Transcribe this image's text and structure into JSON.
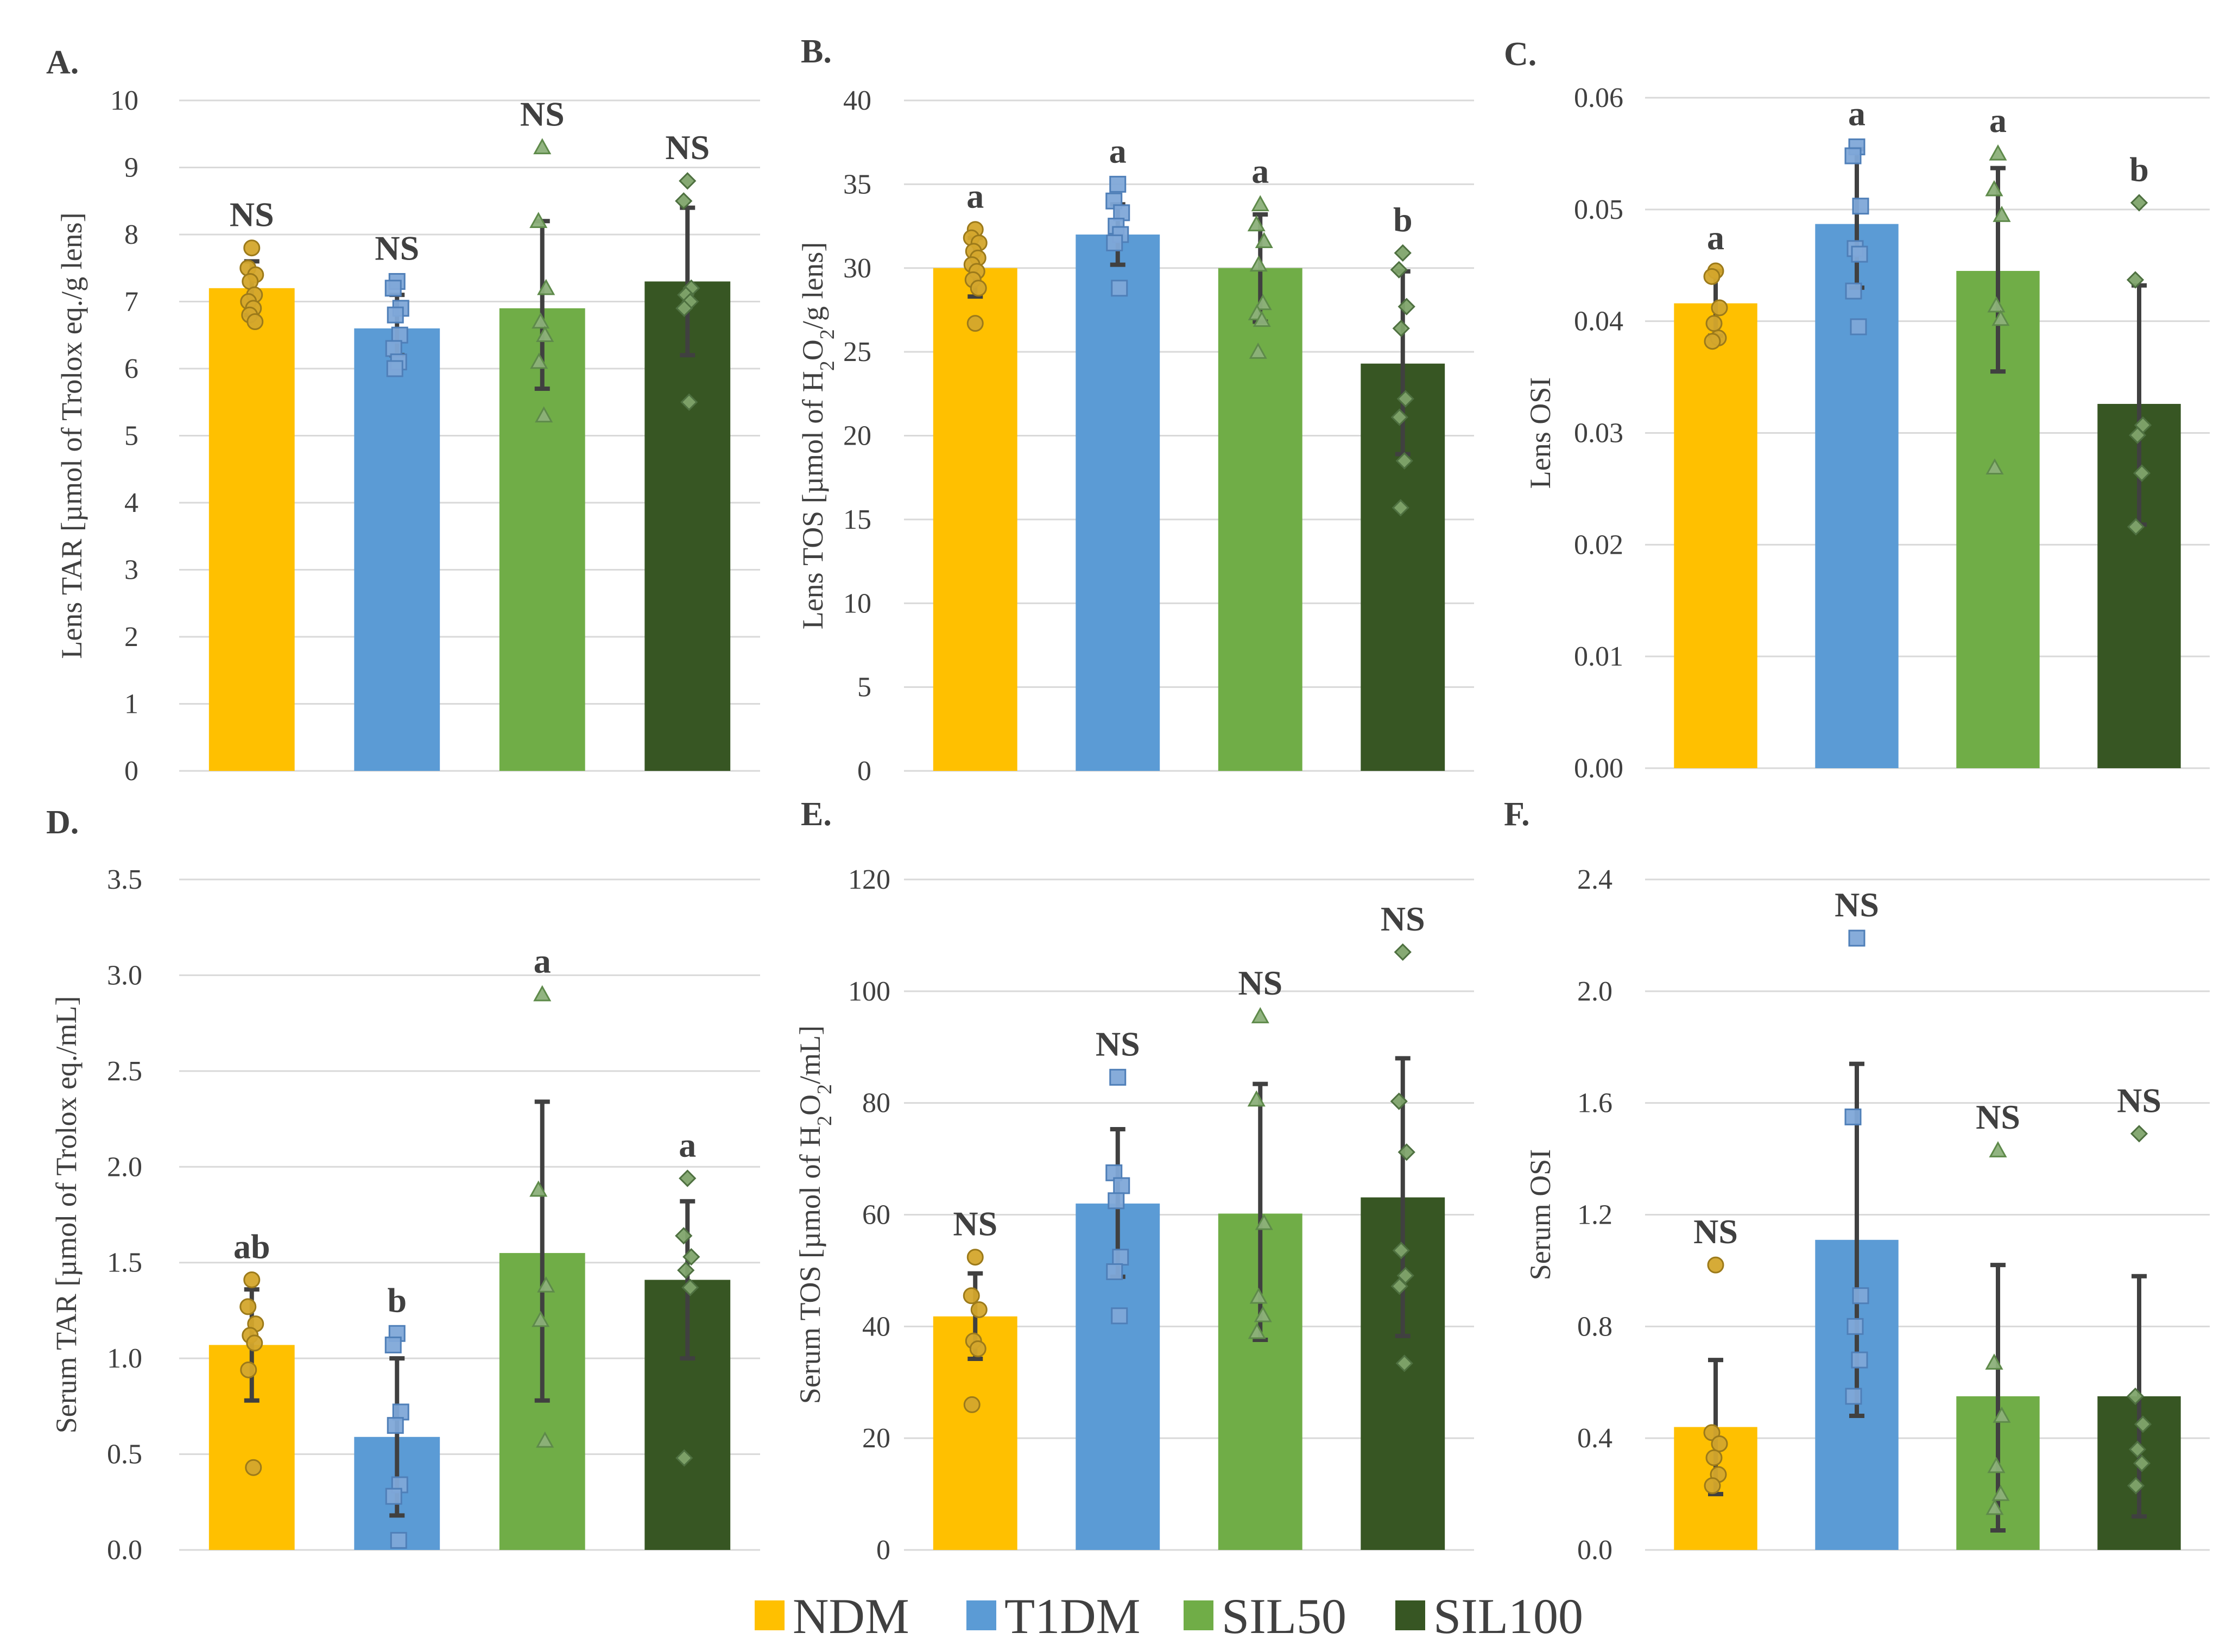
{
  "legend": {
    "items": [
      {
        "label": "NDM",
        "color": "#FFC000"
      },
      {
        "label": "T1DM",
        "color": "#5B9BD5"
      },
      {
        "label": "SIL50",
        "color": "#70AD47"
      },
      {
        "label": "SIL100",
        "color": "#375623"
      }
    ]
  },
  "chart_data": [
    {
      "id": "A",
      "title": "A.",
      "type": "bar",
      "ylabel": "Lens TAR [µmol of Trolox eq./g lens]",
      "ylim": [
        0,
        10
      ],
      "ticks": [
        "0",
        "1",
        "2",
        "3",
        "4",
        "5",
        "6",
        "7",
        "8",
        "9",
        "10"
      ],
      "categories": [
        "NDM",
        "T1DM",
        "SIL50",
        "SIL100"
      ],
      "values": [
        7.2,
        6.6,
        6.9,
        7.3
      ],
      "error": [
        [
          6.8,
          7.6
        ],
        [
          6.2,
          7.1
        ],
        [
          5.7,
          8.2
        ],
        [
          6.2,
          8.4
        ]
      ],
      "points": [
        [
          7.8,
          7.5,
          7.4,
          7.3,
          7.1,
          7.0,
          6.9,
          6.8,
          6.7
        ],
        [
          7.3,
          7.2,
          6.9,
          6.8,
          6.5,
          6.3,
          6.1,
          6.0
        ],
        [
          9.3,
          8.2,
          7.2,
          6.7,
          6.5,
          6.1,
          5.3
        ],
        [
          8.8,
          8.5,
          7.2,
          7.1,
          7.0,
          6.9,
          5.5
        ]
      ],
      "significance": [
        "NS",
        "NS",
        "NS",
        "NS"
      ]
    },
    {
      "id": "B",
      "title": "B.",
      "type": "bar",
      "ylabel_parts": [
        "Lens TOS [µmol of H",
        "2",
        "O",
        "2",
        "/g lens]"
      ],
      "ylim": [
        0,
        40
      ],
      "ticks": [
        "0",
        "5",
        "10",
        "15",
        "20",
        "25",
        "30",
        "35",
        "40"
      ],
      "categories": [
        "NDM",
        "T1DM",
        "SIL50",
        "SIL100"
      ],
      "values": [
        30,
        32,
        30,
        24.3
      ],
      "error": [
        [
          28.3,
          31.8
        ],
        [
          30.2,
          33.8
        ],
        [
          26.8,
          33.2
        ],
        [
          18.9,
          29.8
        ]
      ],
      "points": [
        [
          32.3,
          31.8,
          31.5,
          31.0,
          30.6,
          30.2,
          29.8,
          29.3,
          28.8,
          26.7
        ],
        [
          35.0,
          34.0,
          33.3,
          32.5,
          32.0,
          31.5,
          28.8
        ],
        [
          33.8,
          32.6,
          31.6,
          30.2,
          27.9,
          27.3,
          26.9,
          25.0
        ],
        [
          30.9,
          29.9,
          27.7,
          26.4,
          22.2,
          21.1,
          18.5,
          15.7
        ]
      ],
      "significance": [
        "a",
        "a",
        "a",
        "b"
      ]
    },
    {
      "id": "C",
      "title": "C.",
      "type": "bar",
      "ylabel": "Lens OSI",
      "ylim": [
        0,
        0.06
      ],
      "ticks": [
        "0.00",
        "0.01",
        "0.02",
        "0.03",
        "0.04",
        "0.05",
        "0.06"
      ],
      "categories": [
        "NDM",
        "T1DM",
        "SIL50",
        "SIL100"
      ],
      "values": [
        0.0416,
        0.0487,
        0.0445,
        0.0326
      ],
      "error": [
        [
          0.0387,
          0.0445
        ],
        [
          0.043,
          0.0554
        ],
        [
          0.0355,
          0.0537
        ],
        [
          0.0218,
          0.0432
        ]
      ],
      "points": [
        [
          0.0445,
          0.044,
          0.0412,
          0.0398,
          0.0385,
          0.0382
        ],
        [
          0.0556,
          0.0548,
          0.0503,
          0.0465,
          0.046,
          0.0427,
          0.0395
        ],
        [
          0.055,
          0.0518,
          0.0495,
          0.0414,
          0.0402,
          0.0269
        ],
        [
          0.0506,
          0.0437,
          0.0307,
          0.0298,
          0.0264,
          0.0216
        ]
      ],
      "significance": [
        "a",
        "a",
        "a",
        "b"
      ]
    },
    {
      "id": "D",
      "title": "D.",
      "type": "bar",
      "ylabel": "Serum TAR [µmol of Trolox eq./mL]",
      "ylim": [
        0,
        3.5
      ],
      "ticks": [
        "0.0",
        "0.5",
        "1.0",
        "1.5",
        "2.0",
        "2.5",
        "3.0",
        "3.5"
      ],
      "categories": [
        "NDM",
        "T1DM",
        "SIL50",
        "SIL100"
      ],
      "values": [
        1.07,
        0.59,
        1.55,
        1.41
      ],
      "error": [
        [
          0.78,
          1.36
        ],
        [
          0.18,
          1.0
        ],
        [
          0.78,
          2.34
        ],
        [
          1.0,
          1.82
        ]
      ],
      "points": [
        [
          1.41,
          1.27,
          1.18,
          1.12,
          1.08,
          0.94,
          0.43
        ],
        [
          1.13,
          1.07,
          0.72,
          0.65,
          0.34,
          0.28,
          0.05
        ],
        [
          2.9,
          1.88,
          1.38,
          1.2,
          0.57
        ],
        [
          1.94,
          1.64,
          1.53,
          1.46,
          1.37,
          0.48
        ]
      ],
      "significance": [
        "ab",
        "b",
        "a",
        "a"
      ]
    },
    {
      "id": "E",
      "title": "E.",
      "type": "bar",
      "ylabel_parts": [
        "Serum TOS [µmol of H",
        "2",
        "O",
        "2",
        "/mL]"
      ],
      "ylim": [
        0,
        120
      ],
      "ticks": [
        "0",
        "20",
        "40",
        "60",
        "80",
        "100",
        "120"
      ],
      "categories": [
        "NDM",
        "T1DM",
        "SIL50",
        "SIL100"
      ],
      "values": [
        41.8,
        62,
        60.2,
        63.1
      ],
      "error": [
        [
          34.2,
          49.5
        ],
        [
          48.9,
          75.3
        ],
        [
          37.6,
          83.4
        ],
        [
          38.3,
          88.0
        ]
      ],
      "points": [
        [
          52.4,
          45.5,
          43.0,
          37.4,
          36.0,
          26.0
        ],
        [
          84.6,
          67.5,
          65.2,
          62.5,
          52.4,
          49.8,
          41.9
        ],
        [
          95.5,
          80.6,
          58.5,
          45.3,
          42.0,
          39.0
        ],
        [
          107.0,
          80.3,
          71.2,
          53.6,
          49.1,
          47.2,
          33.4
        ]
      ],
      "significance": [
        "NS",
        "NS",
        "NS",
        "NS"
      ]
    },
    {
      "id": "F",
      "title": "F.",
      "type": "bar",
      "ylabel": "Serum OSI",
      "ylim": [
        0,
        2.4
      ],
      "ticks": [
        "0.0",
        "0.4",
        "0.8",
        "1.2",
        "1.6",
        "2.0",
        "2.4"
      ],
      "categories": [
        "NDM",
        "T1DM",
        "SIL50",
        "SIL100"
      ],
      "values": [
        0.44,
        1.11,
        0.55,
        0.55
      ],
      "error": [
        [
          0.2,
          0.68
        ],
        [
          0.48,
          1.74
        ],
        [
          0.07,
          1.02
        ],
        [
          0.12,
          0.98
        ]
      ],
      "points": [
        [
          1.02,
          0.42,
          0.38,
          0.33,
          0.27,
          0.23
        ],
        [
          2.19,
          1.55,
          0.91,
          0.8,
          0.68,
          0.55
        ],
        [
          1.43,
          0.67,
          0.48,
          0.3,
          0.2,
          0.15
        ],
        [
          1.49,
          0.55,
          0.45,
          0.36,
          0.31,
          0.23
        ]
      ],
      "significance": [
        "NS",
        "NS",
        "NS",
        "NS"
      ]
    }
  ]
}
